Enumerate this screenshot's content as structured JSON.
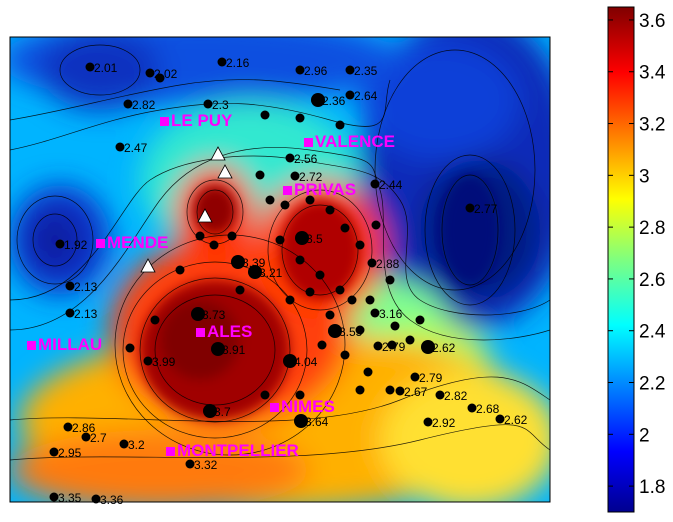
{
  "chart_data": {
    "type": "heatmap",
    "colormap": "jet",
    "colorbar": {
      "min": 1.7,
      "max": 3.65,
      "ticks": [
        "3.6",
        "3.4",
        "3.2",
        "3",
        "2.8",
        "2.6",
        "2.4",
        "2.2",
        "2",
        "1.8"
      ],
      "tick_values": [
        3.6,
        3.4,
        3.2,
        3.0,
        2.8,
        2.6,
        2.4,
        2.2,
        2.0,
        1.8
      ]
    },
    "cities": [
      {
        "name": "LE PUY",
        "label": "LE PUY"
      },
      {
        "name": "VALENCE",
        "label": "VALENCE"
      },
      {
        "name": "PRIVAS",
        "label": "PRIVAS"
      },
      {
        "name": "MENDE",
        "label": "MENDE"
      },
      {
        "name": "ALES",
        "label": "ALES"
      },
      {
        "name": "MILLAU",
        "label": "MILLAU"
      },
      {
        "name": "NIMES",
        "label": "NIMES"
      },
      {
        "name": "MONTPELLIER",
        "label": "MONTPELLIER"
      }
    ],
    "station_labels": [
      "2.16",
      "2.96",
      "2.35",
      "2.01",
      "2.02",
      "2.82",
      "2.3",
      "2.36",
      "2.64",
      "2.47",
      "2.56",
      "2.72",
      "2.44",
      "2.77",
      "1.92",
      "2.13",
      "2.13",
      "3.39",
      "3.21",
      "3.5",
      "3.73",
      "3.91",
      "3.99",
      "4.04",
      "2.88",
      "3.16",
      "3.55",
      "2.79",
      "3.7",
      "3.64",
      "2.62",
      "2.79",
      "2.67",
      "2.82",
      "2.68",
      "2.62",
      "2.92",
      "2.86",
      "2.7",
      "3.2",
      "2.95",
      "3.32",
      "3.35",
      "3.36"
    ]
  }
}
